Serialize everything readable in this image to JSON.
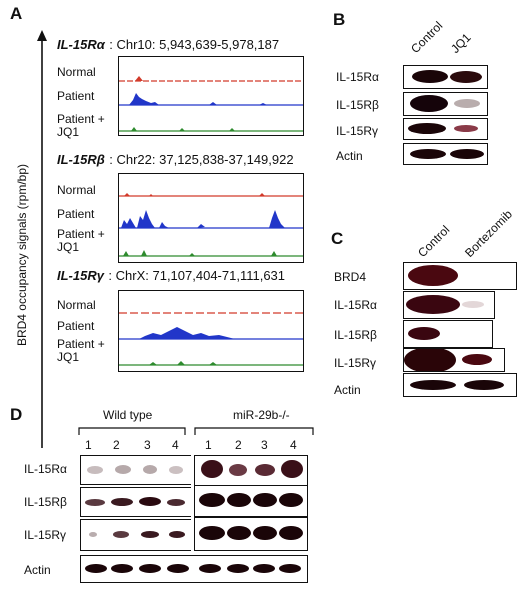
{
  "panelA": {
    "letter": "A",
    "y_axis_label": "BRD4 occupancy signals (rpm/bp)",
    "loci": [
      {
        "gene": "IL-15Rα",
        "coords": ": Chr10: 5,943,639-5,978,187",
        "tracks": [
          {
            "label": "Normal",
            "color": "#d23a2a"
          },
          {
            "label": "Patient",
            "color": "#2136c9"
          },
          {
            "label": "Patient + JQ1",
            "color": "#2e8b2e"
          }
        ]
      },
      {
        "gene": "IL-15Rβ",
        "coords": ": Chr22: 37,125,838-37,149,922",
        "tracks": [
          {
            "label": "Normal",
            "color": "#d23a2a"
          },
          {
            "label": "Patient",
            "color": "#2136c9"
          },
          {
            "label": "Patient + JQ1",
            "color": "#2e8b2e"
          }
        ]
      },
      {
        "gene": "IL-15Rγ",
        "coords": ": ChrX: 71,107,404-71,111,631",
        "tracks": [
          {
            "label": "Normal",
            "color": "#d23a2a"
          },
          {
            "label": "Patient",
            "color": "#2136c9"
          },
          {
            "label": "Patient + JQ1",
            "color": "#2e8b2e"
          }
        ]
      }
    ]
  },
  "panelB": {
    "letter": "B",
    "columns": [
      "Control",
      "JQ1"
    ],
    "rows": [
      "IL-15Rα",
      "IL-15Rβ",
      "IL-15Rγ",
      "Actin"
    ]
  },
  "panelC": {
    "letter": "C",
    "columns": [
      "Control",
      "Bortezomib"
    ],
    "rows": [
      "BRD4",
      "IL-15Rα",
      "IL-15Rβ",
      "IL-15Rγ",
      "Actin"
    ]
  },
  "panelD": {
    "letter": "D",
    "groups": [
      "Wild type",
      "miR-29b-/-"
    ],
    "lanes": [
      "1",
      "2",
      "3",
      "4",
      "1",
      "2",
      "3",
      "4"
    ],
    "rows": [
      "IL-15Rα",
      "IL-15Rβ",
      "IL-15Rγ",
      "Actin"
    ]
  },
  "colors": {
    "normal": "#d23a2a",
    "patient": "#2136c9",
    "jq1": "#2e8b2e",
    "band": "#2a0a0c"
  }
}
